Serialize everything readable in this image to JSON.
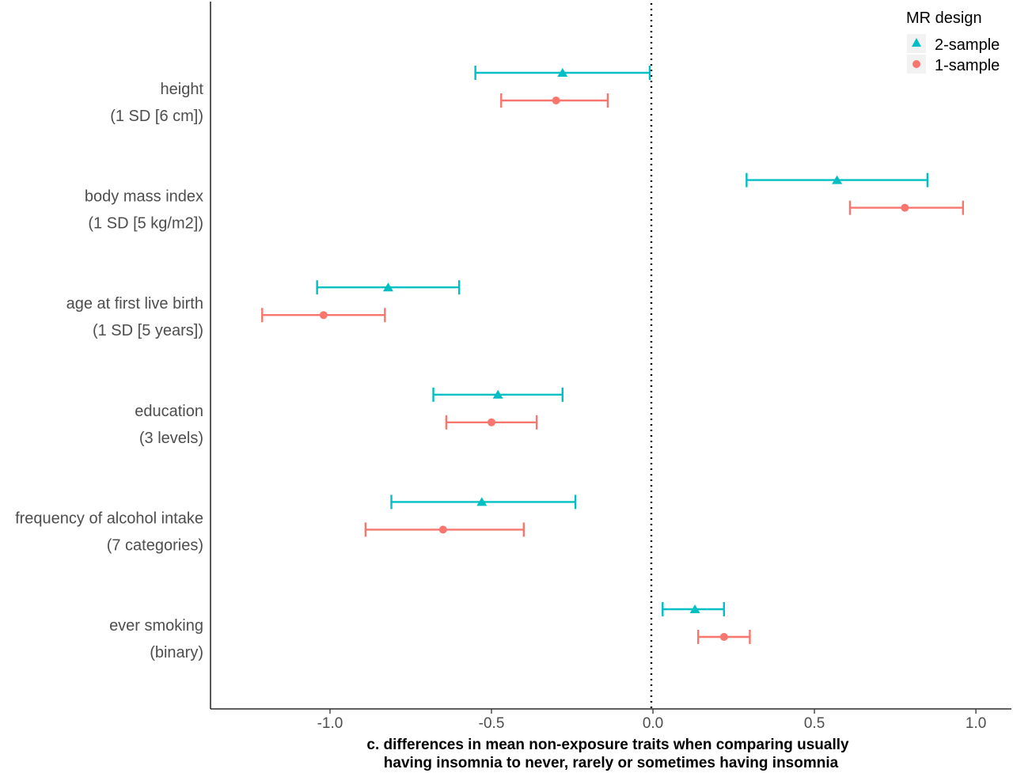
{
  "chart_data": {
    "type": "forest",
    "xlabel": [
      "c. differences in mean non-exposure traits when comparing usually",
      "having insomnia to never, rarely or sometimes having insomnia"
    ],
    "xlim": [
      -1.37,
      1.11
    ],
    "xticks": [
      -1.0,
      -0.5,
      0.0,
      0.5,
      1.0
    ],
    "xtick_labels": [
      "-1.0",
      "-0.5",
      "0.0",
      "0.5",
      "1.0"
    ],
    "reference_line": {
      "x": 0.0,
      "style": "dotted"
    },
    "grid": false,
    "legend": {
      "title": "MR design",
      "position": "top-right",
      "entries": [
        {
          "label": "2-sample",
          "marker": "triangle",
          "color": "#00BFC4"
        },
        {
          "label": "1-sample",
          "marker": "circle",
          "color": "#F8766D"
        }
      ]
    },
    "categories": [
      {
        "line1": "height",
        "line2": "(1 SD [6 cm])"
      },
      {
        "line1": "body mass index",
        "line2": "(1 SD [5 kg/m2])"
      },
      {
        "line1": "age at first live birth",
        "line2": "(1 SD [5 years])"
      },
      {
        "line1": "education",
        "line2": "(3 levels)"
      },
      {
        "line1": "frequency of alcohol intake",
        "line2": "(7 categories)"
      },
      {
        "line1": "ever smoking",
        "line2": "(binary)"
      }
    ],
    "series": [
      {
        "name": "2-sample",
        "marker": "triangle",
        "color": "#00BFC4",
        "points": [
          {
            "estimate": -0.28,
            "lower": -0.55,
            "upper": -0.01
          },
          {
            "estimate": 0.57,
            "lower": 0.29,
            "upper": 0.85
          },
          {
            "estimate": -0.82,
            "lower": -1.04,
            "upper": -0.6
          },
          {
            "estimate": -0.48,
            "lower": -0.68,
            "upper": -0.28
          },
          {
            "estimate": -0.53,
            "lower": -0.81,
            "upper": -0.24
          },
          {
            "estimate": 0.13,
            "lower": 0.03,
            "upper": 0.22
          }
        ]
      },
      {
        "name": "1-sample",
        "marker": "circle",
        "color": "#F8766D",
        "points": [
          {
            "estimate": -0.3,
            "lower": -0.47,
            "upper": -0.14
          },
          {
            "estimate": 0.78,
            "lower": 0.61,
            "upper": 0.96
          },
          {
            "estimate": -1.02,
            "lower": -1.21,
            "upper": -0.83
          },
          {
            "estimate": -0.5,
            "lower": -0.64,
            "upper": -0.36
          },
          {
            "estimate": -0.65,
            "lower": -0.89,
            "upper": -0.4
          },
          {
            "estimate": 0.22,
            "lower": 0.14,
            "upper": 0.3
          }
        ]
      }
    ]
  }
}
